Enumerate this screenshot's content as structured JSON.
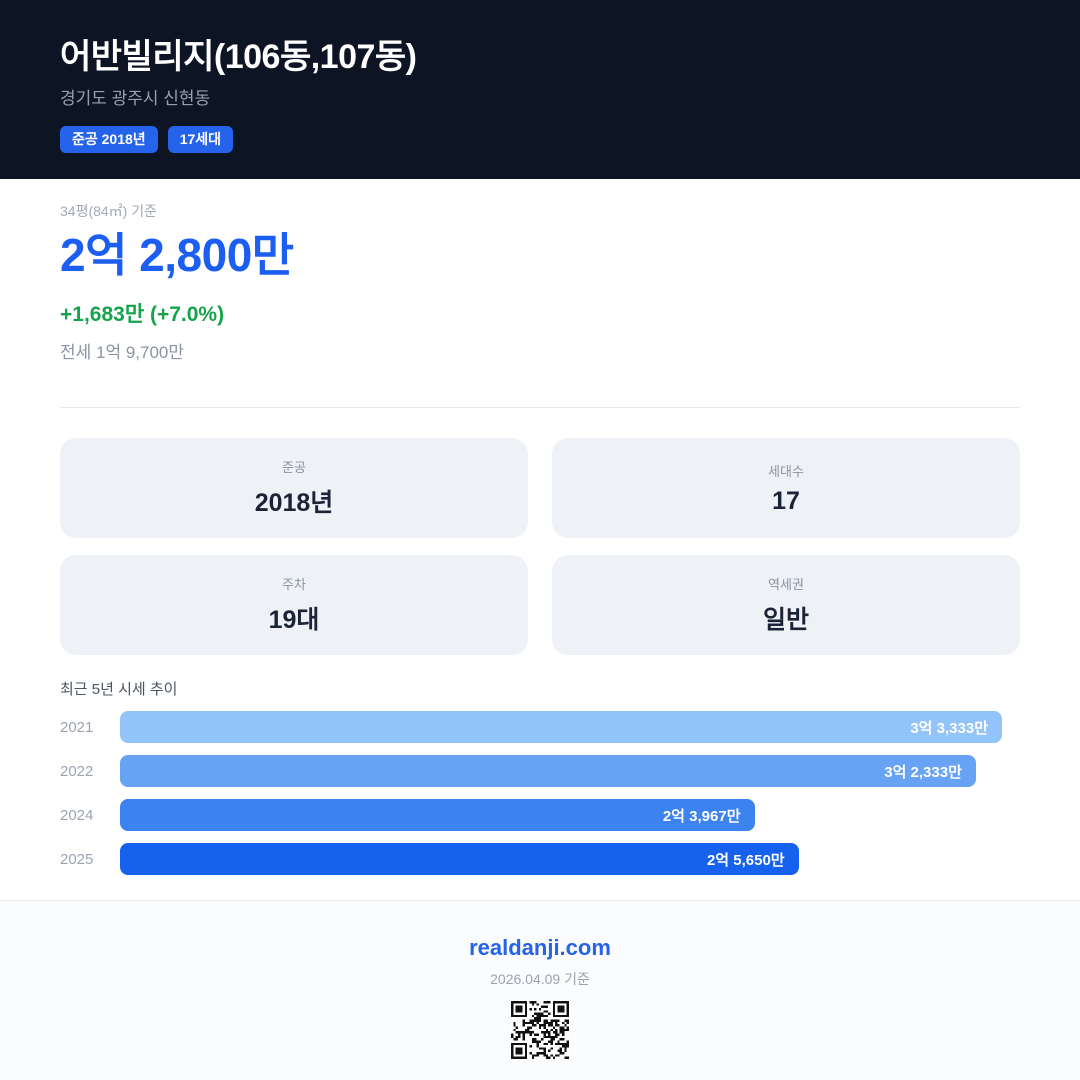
{
  "header": {
    "title": "어반빌리지(106동,107동)",
    "location": "경기도 광주시 신현동",
    "badges": [
      {
        "label": "준공 2018년"
      },
      {
        "label": "17세대"
      }
    ]
  },
  "price": {
    "basis": "34평(84㎡) 기준",
    "current": "2억 2,800만",
    "change": "+1,683만 (+7.0%)",
    "jeonse": "전세 1억 9,700만"
  },
  "info_cards": [
    {
      "label": "준공",
      "value": "2018년"
    },
    {
      "label": "세대수",
      "value": "17"
    },
    {
      "label": "주차",
      "value": "19대"
    },
    {
      "label": "역세권",
      "value": "일반"
    }
  ],
  "chart_data": {
    "type": "bar",
    "orientation": "horizontal",
    "title": "최근 5년 시세 추이",
    "categories": [
      "2021",
      "2022",
      "2024",
      "2025"
    ],
    "values": [
      33333,
      32333,
      23967,
      25650
    ],
    "value_labels": [
      "3억 3,333만",
      "3억 2,333만",
      "2억 3,967만",
      "2억 5,650만"
    ],
    "bar_colors": [
      "#92c3f9",
      "#67a2f4",
      "#3c83f0",
      "#1661ee"
    ],
    "unit": "만원",
    "xlim": [
      0,
      33333
    ],
    "grid": false,
    "legend": false
  },
  "footer": {
    "site": "realdanji.com",
    "date_note": "2026.04.09 기준"
  },
  "colors": {
    "header_bg": "#0d1524",
    "badge": "#2563eb",
    "price_accent": "#1d5ef2",
    "change_positive": "#17a34c"
  }
}
